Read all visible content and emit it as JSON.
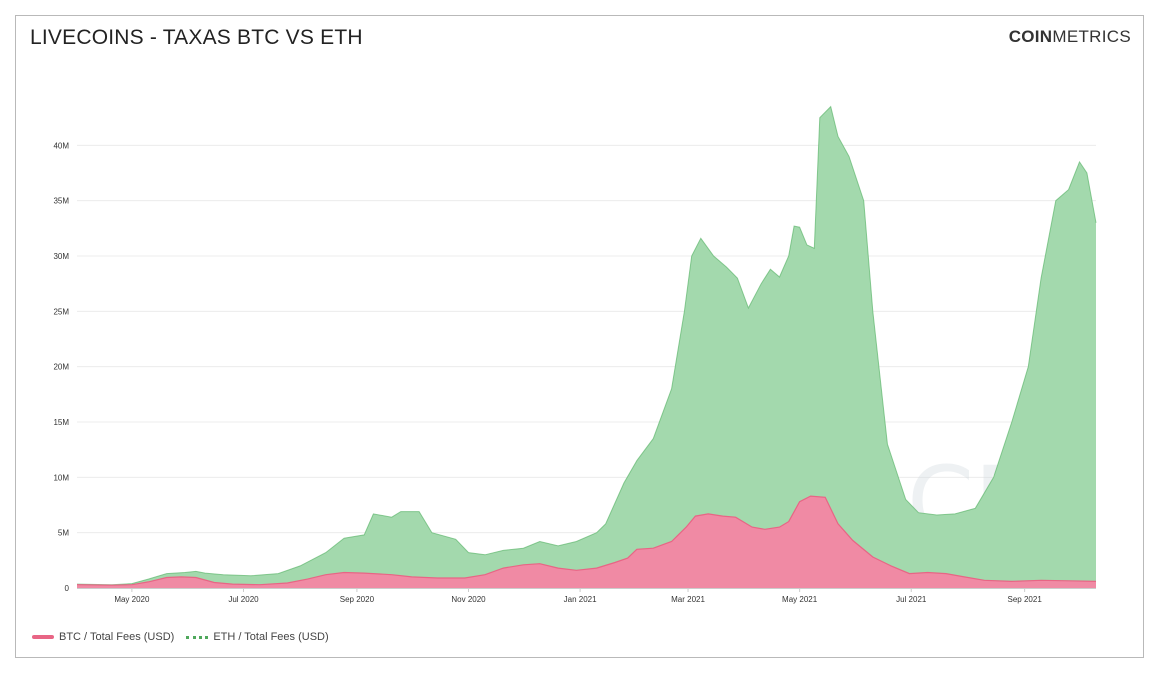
{
  "header": {
    "title": "LIVECOINS - TAXAS BTC VS ETH",
    "brand_bold": "COIN",
    "brand_light": "METRICS"
  },
  "colors": {
    "btc": "#e86585",
    "btc_fill": "#f08aa4",
    "eth": "#5fb76e",
    "eth_fill": "#a3d9ad",
    "grid": "#ececec"
  },
  "chart_data": {
    "type": "area",
    "ylim": [
      0,
      45000000
    ],
    "yticks": [
      {
        "value": 0,
        "label": "0"
      },
      {
        "value": 5000000,
        "label": "5M"
      },
      {
        "value": 10000000,
        "label": "10M"
      },
      {
        "value": 15000000,
        "label": "15M"
      },
      {
        "value": 20000000,
        "label": "20M"
      },
      {
        "value": 25000000,
        "label": "25M"
      },
      {
        "value": 30000000,
        "label": "30M"
      },
      {
        "value": 35000000,
        "label": "35M"
      },
      {
        "value": 40000000,
        "label": "40M"
      }
    ],
    "xlim": [
      "2020-04-01",
      "2021-10-10"
    ],
    "xticks": [
      {
        "date": "2020-05-01",
        "label": "May 2020"
      },
      {
        "date": "2020-07-01",
        "label": "Jul 2020"
      },
      {
        "date": "2020-09-01",
        "label": "Sep 2020"
      },
      {
        "date": "2020-11-01",
        "label": "Nov 2020"
      },
      {
        "date": "2021-01-01",
        "label": "Jan 2021"
      },
      {
        "date": "2021-03-01",
        "label": "Mar 2021"
      },
      {
        "date": "2021-05-01",
        "label": "May 2021"
      },
      {
        "date": "2021-07-01",
        "label": "Jul 2021"
      },
      {
        "date": "2021-09-01",
        "label": "Sep 2021"
      }
    ],
    "series": [
      {
        "name": "BTC / Total Fees (USD)",
        "color": "#e86585",
        "points": [
          [
            "2020-04-01",
            300000
          ],
          [
            "2020-04-20",
            250000
          ],
          [
            "2020-05-01",
            300000
          ],
          [
            "2020-05-10",
            550000
          ],
          [
            "2020-05-20",
            950000
          ],
          [
            "2020-05-28",
            1000000
          ],
          [
            "2020-06-05",
            950000
          ],
          [
            "2020-06-15",
            500000
          ],
          [
            "2020-06-25",
            350000
          ],
          [
            "2020-07-10",
            300000
          ],
          [
            "2020-07-25",
            450000
          ],
          [
            "2020-08-05",
            800000
          ],
          [
            "2020-08-15",
            1200000
          ],
          [
            "2020-08-25",
            1400000
          ],
          [
            "2020-09-05",
            1350000
          ],
          [
            "2020-09-20",
            1200000
          ],
          [
            "2020-10-01",
            1000000
          ],
          [
            "2020-10-15",
            900000
          ],
          [
            "2020-10-30",
            900000
          ],
          [
            "2020-11-10",
            1200000
          ],
          [
            "2020-11-20",
            1800000
          ],
          [
            "2020-12-01",
            2100000
          ],
          [
            "2020-12-10",
            2200000
          ],
          [
            "2020-12-20",
            1800000
          ],
          [
            "2020-12-30",
            1600000
          ],
          [
            "2021-01-10",
            1800000
          ],
          [
            "2021-01-20",
            2300000
          ],
          [
            "2021-01-27",
            2700000
          ],
          [
            "2021-02-01",
            3500000
          ],
          [
            "2021-02-10",
            3600000
          ],
          [
            "2021-02-20",
            4200000
          ],
          [
            "2021-02-28",
            5500000
          ],
          [
            "2021-03-05",
            6500000
          ],
          [
            "2021-03-12",
            6700000
          ],
          [
            "2021-03-20",
            6500000
          ],
          [
            "2021-03-27",
            6400000
          ],
          [
            "2021-04-05",
            5500000
          ],
          [
            "2021-04-12",
            5300000
          ],
          [
            "2021-04-20",
            5500000
          ],
          [
            "2021-04-25",
            6000000
          ],
          [
            "2021-05-01",
            7800000
          ],
          [
            "2021-05-07",
            8300000
          ],
          [
            "2021-05-15",
            8200000
          ],
          [
            "2021-05-22",
            5800000
          ],
          [
            "2021-05-30",
            4300000
          ],
          [
            "2021-06-10",
            2800000
          ],
          [
            "2021-06-20",
            2000000
          ],
          [
            "2021-06-30",
            1300000
          ],
          [
            "2021-07-10",
            1400000
          ],
          [
            "2021-07-20",
            1300000
          ],
          [
            "2021-07-30",
            1000000
          ],
          [
            "2021-08-10",
            700000
          ],
          [
            "2021-08-25",
            600000
          ],
          [
            "2021-09-10",
            700000
          ],
          [
            "2021-09-25",
            650000
          ],
          [
            "2021-10-10",
            600000
          ]
        ]
      },
      {
        "name": "ETH / Total Fees (USD)",
        "color": "#5fb76e",
        "points": [
          [
            "2020-04-01",
            350000
          ],
          [
            "2020-04-20",
            300000
          ],
          [
            "2020-05-01",
            400000
          ],
          [
            "2020-05-10",
            800000
          ],
          [
            "2020-05-20",
            1300000
          ],
          [
            "2020-05-30",
            1400000
          ],
          [
            "2020-06-05",
            1500000
          ],
          [
            "2020-06-10",
            1350000
          ],
          [
            "2020-06-20",
            1200000
          ],
          [
            "2020-07-05",
            1100000
          ],
          [
            "2020-07-20",
            1300000
          ],
          [
            "2020-08-01",
            2000000
          ],
          [
            "2020-08-15",
            3200000
          ],
          [
            "2020-08-25",
            4500000
          ],
          [
            "2020-09-05",
            4800000
          ],
          [
            "2020-09-10",
            6700000
          ],
          [
            "2020-09-20",
            6400000
          ],
          [
            "2020-09-25",
            6900000
          ],
          [
            "2020-10-05",
            6900000
          ],
          [
            "2020-10-12",
            5000000
          ],
          [
            "2020-10-25",
            4400000
          ],
          [
            "2020-11-01",
            3200000
          ],
          [
            "2020-11-10",
            3000000
          ],
          [
            "2020-11-20",
            3400000
          ],
          [
            "2020-12-01",
            3600000
          ],
          [
            "2020-12-10",
            4200000
          ],
          [
            "2020-12-20",
            3800000
          ],
          [
            "2020-12-30",
            4200000
          ],
          [
            "2021-01-10",
            5000000
          ],
          [
            "2021-01-15",
            5800000
          ],
          [
            "2021-01-25",
            9500000
          ],
          [
            "2021-02-01",
            11500000
          ],
          [
            "2021-02-10",
            13500000
          ],
          [
            "2021-02-20",
            18000000
          ],
          [
            "2021-02-27",
            25000000
          ],
          [
            "2021-03-03",
            30000000
          ],
          [
            "2021-03-08",
            31600000
          ],
          [
            "2021-03-15",
            30000000
          ],
          [
            "2021-03-22",
            29000000
          ],
          [
            "2021-03-28",
            28000000
          ],
          [
            "2021-04-03",
            25300000
          ],
          [
            "2021-04-10",
            27500000
          ],
          [
            "2021-04-15",
            28800000
          ],
          [
            "2021-04-20",
            28100000
          ],
          [
            "2021-04-25",
            30000000
          ],
          [
            "2021-04-28",
            32700000
          ],
          [
            "2021-05-01",
            32600000
          ],
          [
            "2021-05-05",
            31000000
          ],
          [
            "2021-05-09",
            30700000
          ],
          [
            "2021-05-12",
            42500000
          ],
          [
            "2021-05-18",
            43500000
          ],
          [
            "2021-05-22",
            40800000
          ],
          [
            "2021-05-28",
            39000000
          ],
          [
            "2021-06-05",
            35000000
          ],
          [
            "2021-06-10",
            25000000
          ],
          [
            "2021-06-18",
            13000000
          ],
          [
            "2021-06-28",
            8000000
          ],
          [
            "2021-07-05",
            6800000
          ],
          [
            "2021-07-15",
            6600000
          ],
          [
            "2021-07-25",
            6700000
          ],
          [
            "2021-08-05",
            7200000
          ],
          [
            "2021-08-15",
            10000000
          ],
          [
            "2021-08-25",
            15000000
          ],
          [
            "2021-09-03",
            20000000
          ],
          [
            "2021-09-10",
            28000000
          ],
          [
            "2021-09-18",
            35000000
          ],
          [
            "2021-09-25",
            36000000
          ],
          [
            "2021-10-01",
            38500000
          ],
          [
            "2021-10-05",
            37500000
          ],
          [
            "2021-10-10",
            33000000
          ]
        ]
      }
    ]
  }
}
